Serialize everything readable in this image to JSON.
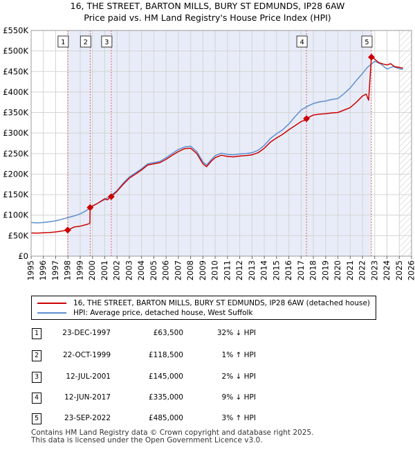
{
  "title_line1": "16, THE STREET, BARTON MILLS, BURY ST EDMUNDS, IP28 6AW",
  "title_line2": "Price paid vs. HM Land Registry's House Price Index (HPI)",
  "chart_data": {
    "type": "line",
    "x_range": [
      1995,
      2026
    ],
    "y_range": [
      0,
      550000
    ],
    "y_ticks": [
      0,
      50000,
      100000,
      150000,
      200000,
      250000,
      300000,
      350000,
      400000,
      450000,
      500000,
      550000
    ],
    "y_tick_labels": [
      "£0",
      "£50K",
      "£100K",
      "£150K",
      "£200K",
      "£250K",
      "£300K",
      "£350K",
      "£400K",
      "£450K",
      "£500K",
      "£550K"
    ],
    "x_ticks": [
      1995,
      1996,
      1997,
      1998,
      1999,
      2000,
      2001,
      2002,
      2003,
      2004,
      2005,
      2006,
      2007,
      2008,
      2009,
      2010,
      2011,
      2012,
      2013,
      2014,
      2015,
      2016,
      2017,
      2018,
      2019,
      2020,
      2021,
      2022,
      2023,
      2024,
      2025,
      2026
    ],
    "x_tick_labels": [
      "1995",
      "1996",
      "1997",
      "1998",
      "1999",
      "2000",
      "2001",
      "2002",
      "2003",
      "2004",
      "2005",
      "2006",
      "2007",
      "2008",
      "2009",
      "2010",
      "2011",
      "2012",
      "2013",
      "2014",
      "2015",
      "2016",
      "2017",
      "2018",
      "2019",
      "2020",
      "2021",
      "2022",
      "2023",
      "2024",
      "2025",
      "2026"
    ],
    "grid": true,
    "shaded_band": [
      1997.98,
      2022.73
    ],
    "hatched_from": 2025.0,
    "series": [
      {
        "name": "16, THE STREET, BARTON MILLS, BURY ST EDMUNDS, IP28 6AW (detached house)",
        "color": "#cc0000",
        "points": [
          [
            1995.0,
            56500
          ],
          [
            1995.5,
            56000
          ],
          [
            1996.0,
            57000
          ],
          [
            1996.5,
            57500
          ],
          [
            1997.0,
            59000
          ],
          [
            1997.5,
            61000
          ],
          [
            1997.98,
            63500
          ],
          [
            1998.5,
            71000
          ],
          [
            1999.0,
            73000
          ],
          [
            1999.5,
            77000
          ],
          [
            1999.79,
            80000
          ],
          [
            1999.81,
            118500
          ],
          [
            2000.0,
            122000
          ],
          [
            2000.5,
            130000
          ],
          [
            2001.0,
            140000
          ],
          [
            2001.2,
            137000
          ],
          [
            2001.53,
            145000
          ],
          [
            2002.0,
            158000
          ],
          [
            2002.5,
            175000
          ],
          [
            2003.0,
            190000
          ],
          [
            2003.5,
            200000
          ],
          [
            2004.0,
            210000
          ],
          [
            2004.5,
            222000
          ],
          [
            2005.0,
            225000
          ],
          [
            2005.5,
            228000
          ],
          [
            2006.0,
            236000
          ],
          [
            2006.5,
            246000
          ],
          [
            2007.0,
            255000
          ],
          [
            2007.5,
            262000
          ],
          [
            2008.0,
            263000
          ],
          [
            2008.5,
            250000
          ],
          [
            2009.0,
            225000
          ],
          [
            2009.3,
            218000
          ],
          [
            2009.7,
            232000
          ],
          [
            2010.0,
            240000
          ],
          [
            2010.5,
            246000
          ],
          [
            2011.0,
            243000
          ],
          [
            2011.5,
            242000
          ],
          [
            2012.0,
            244000
          ],
          [
            2012.5,
            245000
          ],
          [
            2013.0,
            247000
          ],
          [
            2013.5,
            252000
          ],
          [
            2014.0,
            263000
          ],
          [
            2014.5,
            278000
          ],
          [
            2015.0,
            288000
          ],
          [
            2015.5,
            297000
          ],
          [
            2016.0,
            308000
          ],
          [
            2016.5,
            318000
          ],
          [
            2017.0,
            328000
          ],
          [
            2017.3,
            331000
          ],
          [
            2017.44,
            335000
          ],
          [
            2017.6,
            338000
          ],
          [
            2018.0,
            344000
          ],
          [
            2018.5,
            346000
          ],
          [
            2019.0,
            347000
          ],
          [
            2019.5,
            349000
          ],
          [
            2020.0,
            350000
          ],
          [
            2020.5,
            356000
          ],
          [
            2021.0,
            362000
          ],
          [
            2021.5,
            375000
          ],
          [
            2022.0,
            390000
          ],
          [
            2022.3,
            395000
          ],
          [
            2022.5,
            380000
          ],
          [
            2022.73,
            485000
          ],
          [
            2023.0,
            480000
          ],
          [
            2023.3,
            472000
          ],
          [
            2023.7,
            468000
          ],
          [
            2024.0,
            466000
          ],
          [
            2024.3,
            469000
          ],
          [
            2024.6,
            462000
          ],
          [
            2025.0,
            460000
          ],
          [
            2025.3,
            458000
          ]
        ]
      },
      {
        "name": "HPI: Average price, detached house, West Suffolk",
        "color": "#5b8fd0",
        "points": [
          [
            1995.0,
            82000
          ],
          [
            1995.5,
            81000
          ],
          [
            1996.0,
            82000
          ],
          [
            1996.5,
            84000
          ],
          [
            1997.0,
            86000
          ],
          [
            1997.5,
            90000
          ],
          [
            1998.0,
            94000
          ],
          [
            1998.5,
            98000
          ],
          [
            1999.0,
            103000
          ],
          [
            1999.5,
            111000
          ],
          [
            2000.0,
            122000
          ],
          [
            2000.5,
            130000
          ],
          [
            2001.0,
            138000
          ],
          [
            2001.5,
            148000
          ],
          [
            2002.0,
            160000
          ],
          [
            2002.5,
            178000
          ],
          [
            2003.0,
            193000
          ],
          [
            2003.5,
            203000
          ],
          [
            2004.0,
            213000
          ],
          [
            2004.5,
            225000
          ],
          [
            2005.0,
            228000
          ],
          [
            2005.5,
            231000
          ],
          [
            2006.0,
            240000
          ],
          [
            2006.5,
            250000
          ],
          [
            2007.0,
            260000
          ],
          [
            2007.5,
            266000
          ],
          [
            2008.0,
            268000
          ],
          [
            2008.5,
            255000
          ],
          [
            2009.0,
            230000
          ],
          [
            2009.3,
            222000
          ],
          [
            2009.7,
            236000
          ],
          [
            2010.0,
            245000
          ],
          [
            2010.5,
            251000
          ],
          [
            2011.0,
            248000
          ],
          [
            2011.5,
            247000
          ],
          [
            2012.0,
            249000
          ],
          [
            2012.5,
            250000
          ],
          [
            2013.0,
            252000
          ],
          [
            2013.5,
            258000
          ],
          [
            2014.0,
            270000
          ],
          [
            2014.5,
            287000
          ],
          [
            2015.0,
            298000
          ],
          [
            2015.5,
            308000
          ],
          [
            2016.0,
            322000
          ],
          [
            2016.5,
            340000
          ],
          [
            2017.0,
            356000
          ],
          [
            2017.5,
            365000
          ],
          [
            2018.0,
            372000
          ],
          [
            2018.5,
            376000
          ],
          [
            2019.0,
            378000
          ],
          [
            2019.5,
            382000
          ],
          [
            2020.0,
            384000
          ],
          [
            2020.5,
            396000
          ],
          [
            2021.0,
            410000
          ],
          [
            2021.5,
            428000
          ],
          [
            2022.0,
            445000
          ],
          [
            2022.4,
            460000
          ],
          [
            2022.73,
            468000
          ],
          [
            2023.0,
            475000
          ],
          [
            2023.5,
            468000
          ],
          [
            2024.0,
            456000
          ],
          [
            2024.5,
            462000
          ],
          [
            2025.0,
            457000
          ],
          [
            2025.3,
            455000
          ]
        ]
      }
    ],
    "sales": [
      {
        "id": "1",
        "x": 1997.98,
        "y": 63500
      },
      {
        "id": "2",
        "x": 1999.81,
        "y": 118500
      },
      {
        "id": "3",
        "x": 2001.53,
        "y": 145000
      },
      {
        "id": "4",
        "x": 2017.44,
        "y": 335000
      },
      {
        "id": "5",
        "x": 2022.73,
        "y": 485000
      }
    ]
  },
  "legend": {
    "series1": "16, THE STREET, BARTON MILLS, BURY ST EDMUNDS, IP28 6AW (detached house)",
    "series2": "HPI: Average price, detached house, West Suffolk",
    "color1": "#cc0000",
    "color2": "#5b8fd0"
  },
  "transactions": [
    {
      "num": "1",
      "date": "23-DEC-1997",
      "price": "£63,500",
      "hpi": "32% ↓ HPI"
    },
    {
      "num": "2",
      "date": "22-OCT-1999",
      "price": "£118,500",
      "hpi": "1% ↑ HPI"
    },
    {
      "num": "3",
      "date": "12-JUL-2001",
      "price": "£145,000",
      "hpi": "2% ↓ HPI"
    },
    {
      "num": "4",
      "date": "12-JUN-2017",
      "price": "£335,000",
      "hpi": "9% ↓ HPI"
    },
    {
      "num": "5",
      "date": "23-SEP-2022",
      "price": "£485,000",
      "hpi": "3% ↑ HPI"
    }
  ],
  "footer_line1": "Contains HM Land Registry data © Crown copyright and database right 2025.",
  "footer_line2": "This data is licensed under the Open Government Licence v3.0."
}
